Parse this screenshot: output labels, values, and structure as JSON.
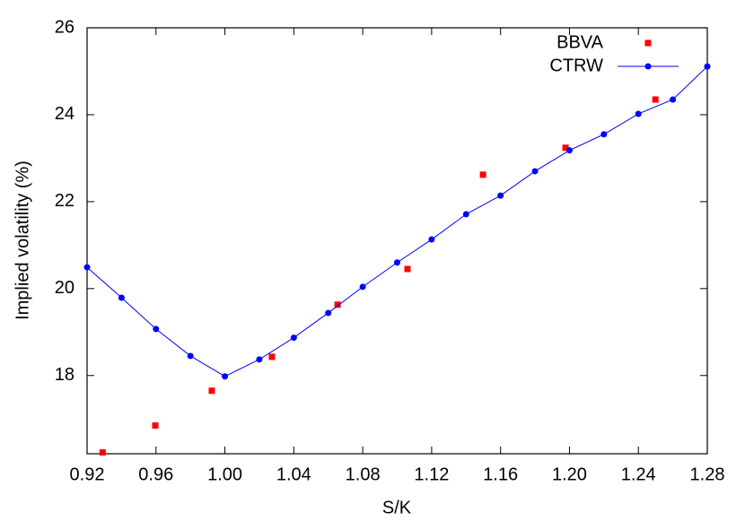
{
  "chart_data": {
    "type": "scatter",
    "xlabel": "S/K",
    "ylabel": "Implied volatility (%)",
    "xlim": [
      0.92,
      1.28
    ],
    "ylim": [
      16.2,
      26
    ],
    "xticks": [
      0.92,
      0.96,
      {
        "value": 1,
        "label": "1.00"
      },
      1.04,
      1.08,
      1.12,
      1.16,
      {
        "value": 1.2,
        "label": "1.20"
      },
      1.24,
      1.28
    ],
    "yticks": [
      18,
      20,
      22,
      24,
      26
    ],
    "legend": "top-right",
    "series": [
      {
        "name": "BBVA",
        "color": "#ff0000",
        "mode": "markers",
        "x": [
          0.929,
          0.9596,
          0.9924,
          1.0273,
          1.0654,
          1.106,
          1.1498,
          1.1977,
          1.2499
        ],
        "values": [
          16.23,
          16.85,
          17.65,
          18.43,
          19.63,
          20.45,
          22.62,
          23.24,
          24.35
        ]
      },
      {
        "name": "CTRW",
        "color": "#0000ff",
        "mode": "lines+markers",
        "x": [
          0.92,
          0.94,
          0.96,
          0.98,
          1.0,
          1.02,
          1.04,
          1.06,
          1.08,
          1.1,
          1.12,
          1.14,
          1.16,
          1.18,
          1.2,
          1.22,
          1.24,
          1.26,
          1.28
        ],
        "values": [
          20.49,
          19.79,
          19.07,
          18.45,
          17.98,
          18.37,
          18.87,
          19.44,
          20.04,
          20.6,
          21.13,
          21.71,
          22.14,
          22.7,
          23.18,
          23.55,
          24.02,
          24.35,
          25.11
        ]
      }
    ]
  }
}
